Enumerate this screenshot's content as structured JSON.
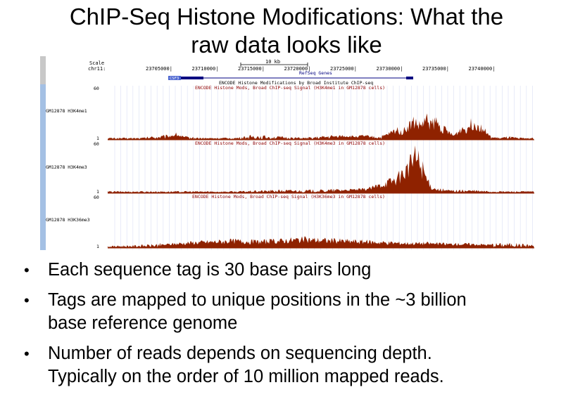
{
  "slide": {
    "title_line1": "ChIP-Seq Histone Modifications: What the",
    "title_line2": "raw data looks like"
  },
  "browser": {
    "scale_label": "Scale",
    "chrom_label": "chr11:",
    "scale_bar_label": "10 kb",
    "positions": [
      "23705000",
      "23710000",
      "23715000",
      "23720000",
      "23725000",
      "23730000",
      "23735000",
      "23740000"
    ],
    "gene_track_label": "RefSeq Genes",
    "gene_name": "CSF3",
    "encode_label": "ENCODE Histone Modifications by Broad Institute ChIP-seq",
    "track_bg_color": "#8f0d00",
    "tracks": [
      {
        "title": "ENCODE Histone Mods, Broad ChIP-seq Signal (H3K4me1 in GM12878 cells)",
        "side_label": "GM12878 H3K4me1",
        "max_label": "60",
        "min_label": "1",
        "color": "#8f2200",
        "profile": [
          [
            0,
            1
          ],
          [
            0.08,
            1
          ],
          [
            0.1,
            2
          ],
          [
            0.14,
            3
          ],
          [
            0.16,
            6
          ],
          [
            0.18,
            2
          ],
          [
            0.22,
            1
          ],
          [
            0.3,
            1
          ],
          [
            0.34,
            3
          ],
          [
            0.4,
            2
          ],
          [
            0.46,
            1
          ],
          [
            0.5,
            2
          ],
          [
            0.55,
            4
          ],
          [
            0.58,
            3
          ],
          [
            0.6,
            4
          ],
          [
            0.62,
            3
          ],
          [
            0.64,
            2
          ],
          [
            0.665,
            8
          ],
          [
            0.68,
            12
          ],
          [
            0.69,
            8
          ],
          [
            0.7,
            14
          ],
          [
            0.71,
            18
          ],
          [
            0.72,
            22
          ],
          [
            0.73,
            16
          ],
          [
            0.74,
            20
          ],
          [
            0.75,
            24
          ],
          [
            0.76,
            18
          ],
          [
            0.77,
            22
          ],
          [
            0.78,
            14
          ],
          [
            0.79,
            12
          ],
          [
            0.8,
            8
          ],
          [
            0.81,
            4
          ],
          [
            0.82,
            8
          ],
          [
            0.83,
            14
          ],
          [
            0.84,
            12
          ],
          [
            0.85,
            18
          ],
          [
            0.86,
            20
          ],
          [
            0.87,
            16
          ],
          [
            0.88,
            14
          ],
          [
            0.89,
            6
          ],
          [
            0.9,
            2
          ],
          [
            0.92,
            1
          ],
          [
            0.94,
            2
          ],
          [
            0.96,
            1
          ],
          [
            1,
            1
          ]
        ]
      },
      {
        "title": "ENCODE Histone Mods, Broad ChIP-seq Signal (H3K4me3 in GM12878 cells)",
        "side_label": "GM12878 H3K4me3",
        "max_label": "60",
        "min_label": "1",
        "color": "#8f2200",
        "profile": [
          [
            0,
            1
          ],
          [
            0.2,
            1
          ],
          [
            0.3,
            1
          ],
          [
            0.4,
            2
          ],
          [
            0.5,
            2
          ],
          [
            0.55,
            3
          ],
          [
            0.6,
            4
          ],
          [
            0.62,
            6
          ],
          [
            0.64,
            10
          ],
          [
            0.66,
            14
          ],
          [
            0.68,
            18
          ],
          [
            0.69,
            24
          ],
          [
            0.7,
            30
          ],
          [
            0.71,
            36
          ],
          [
            0.715,
            46
          ],
          [
            0.72,
            50
          ],
          [
            0.73,
            40
          ],
          [
            0.74,
            30
          ],
          [
            0.75,
            14
          ],
          [
            0.76,
            6
          ],
          [
            0.78,
            3
          ],
          [
            0.8,
            2
          ],
          [
            0.85,
            2
          ],
          [
            0.9,
            1
          ],
          [
            1,
            1
          ]
        ]
      },
      {
        "title": "ENCODE Histone Mods, Broad ChIP-seq Signal (H3K36me3 in GM12878 cells)",
        "side_label": "GM12878 H3K36me3",
        "max_label": "60",
        "min_label": "1",
        "color": "#8f2200",
        "profile": [
          [
            0,
            1
          ],
          [
            0.1,
            2
          ],
          [
            0.15,
            4
          ],
          [
            0.2,
            6
          ],
          [
            0.25,
            7
          ],
          [
            0.3,
            8
          ],
          [
            0.35,
            7
          ],
          [
            0.4,
            8
          ],
          [
            0.45,
            10
          ],
          [
            0.5,
            9
          ],
          [
            0.55,
            8
          ],
          [
            0.6,
            7
          ],
          [
            0.65,
            6
          ],
          [
            0.7,
            5
          ],
          [
            0.75,
            5
          ],
          [
            0.8,
            4
          ],
          [
            0.85,
            4
          ],
          [
            0.9,
            3
          ],
          [
            0.95,
            3
          ],
          [
            1,
            2
          ]
        ]
      }
    ]
  },
  "bullets": [
    {
      "line1": "Each sequence tag is 30 base pairs long",
      "line2": ""
    },
    {
      "line1": "Tags are mapped to unique positions in the ~3 billion",
      "line2": "base reference genome"
    },
    {
      "line1": "Number of reads depends on sequencing depth.",
      "line2": "Typically on the order of 10 million mapped reads."
    }
  ],
  "bullet_glyph": "•"
}
